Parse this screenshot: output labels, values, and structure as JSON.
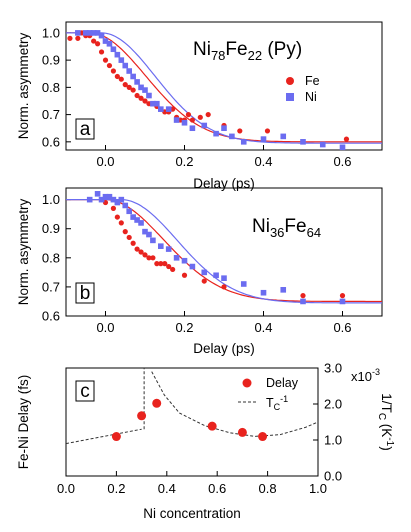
{
  "chart_data": [
    {
      "type": "scatter",
      "panel_label": "a",
      "title": {
        "base": "Ni",
        "sub1": "78",
        "mid": "Fe",
        "sub2": "22",
        "tail": " (Py)"
      },
      "xlabel": "Delay (ps)",
      "ylabel": "Norm. asymmetry",
      "xlim": [
        -0.1,
        0.7
      ],
      "ylim": [
        0.57,
        1.04
      ],
      "xticks": [
        0.0,
        0.2,
        0.4,
        0.6
      ],
      "xtick_labels": [
        "0.0",
        "0.2",
        "0.4",
        "0.6"
      ],
      "yticks": [
        0.6,
        0.7,
        0.8,
        0.9,
        1.0
      ],
      "ytick_labels": [
        "0.6",
        "0.7",
        "0.8",
        "0.9",
        "1.0"
      ],
      "legend": [
        "Fe",
        "Ni"
      ],
      "series": [
        {
          "name": "Fe",
          "marker": "circle",
          "color": "#e8231e",
          "x": [
            -0.09,
            -0.07,
            -0.06,
            -0.05,
            -0.04,
            -0.03,
            -0.02,
            -0.01,
            0.0,
            0.01,
            0.02,
            0.03,
            0.04,
            0.05,
            0.06,
            0.07,
            0.08,
            0.09,
            0.1,
            0.11,
            0.12,
            0.13,
            0.14,
            0.15,
            0.16,
            0.17,
            0.18,
            0.19,
            0.2,
            0.21,
            0.22,
            0.24,
            0.26,
            0.3,
            0.34,
            0.41,
            0.61
          ],
          "y": [
            0.98,
            0.98,
            1.0,
            0.99,
            0.99,
            0.97,
            0.96,
            0.93,
            0.9,
            0.88,
            0.86,
            0.84,
            0.83,
            0.81,
            0.8,
            0.79,
            0.77,
            0.76,
            0.75,
            0.74,
            0.74,
            0.73,
            0.72,
            0.71,
            0.71,
            0.72,
            0.69,
            0.68,
            0.68,
            0.7,
            0.68,
            0.69,
            0.7,
            0.66,
            0.64,
            0.64,
            0.61
          ]
        },
        {
          "name": "Ni",
          "marker": "square",
          "color": "#6b6cf0",
          "x": [
            -0.07,
            -0.05,
            -0.04,
            -0.03,
            -0.02,
            -0.01,
            0.0,
            0.01,
            0.02,
            0.03,
            0.04,
            0.05,
            0.06,
            0.07,
            0.08,
            0.09,
            0.1,
            0.11,
            0.12,
            0.13,
            0.14,
            0.16,
            0.18,
            0.2,
            0.22,
            0.25,
            0.28,
            0.3,
            0.32,
            0.35,
            0.4,
            0.45,
            0.5,
            0.55,
            0.6
          ],
          "y": [
            1.0,
            1.0,
            1.0,
            1.0,
            1.0,
            0.99,
            0.97,
            0.96,
            0.94,
            0.92,
            0.9,
            0.88,
            0.86,
            0.84,
            0.82,
            0.8,
            0.79,
            0.77,
            0.74,
            0.74,
            0.72,
            0.72,
            0.68,
            0.67,
            0.65,
            0.66,
            0.63,
            0.65,
            0.62,
            0.6,
            0.61,
            0.62,
            0.6,
            0.59,
            0.58
          ]
        }
      ],
      "fits": [
        {
          "name": "Fe",
          "color": "#e8231e",
          "baseline": 0.6,
          "amplitude": 0.4,
          "center": 0.075,
          "width": 0.125,
          "onset": -0.04
        },
        {
          "name": "Ni",
          "color": "#6b6cf0",
          "baseline": 0.595,
          "amplitude": 0.405,
          "center": 0.105,
          "width": 0.12,
          "onset": -0.01
        }
      ]
    },
    {
      "type": "scatter",
      "panel_label": "b",
      "title": {
        "base": "Ni",
        "sub1": "36",
        "mid": "Fe",
        "sub2": "64",
        "tail": ""
      },
      "xlabel": "Delay (ps)",
      "ylabel": "Norm. asymmetry",
      "xlim": [
        -0.1,
        0.7
      ],
      "ylim": [
        0.6,
        1.04
      ],
      "xticks": [
        0.0,
        0.2,
        0.4,
        0.6
      ],
      "xtick_labels": [
        "0.0",
        "0.2",
        "0.4",
        "0.6"
      ],
      "yticks": [
        0.6,
        0.7,
        0.8,
        0.9,
        1.0
      ],
      "ytick_labels": [
        "0.6",
        "0.7",
        "0.8",
        "0.9",
        "1.0"
      ],
      "series": [
        {
          "name": "Fe",
          "marker": "circle",
          "color": "#e8231e",
          "x": [
            0.0,
            0.02,
            0.03,
            0.04,
            0.05,
            0.06,
            0.07,
            0.08,
            0.09,
            0.1,
            0.11,
            0.12,
            0.13,
            0.14,
            0.15,
            0.16,
            0.17,
            0.2,
            0.25,
            0.3,
            0.4,
            0.5,
            0.6
          ],
          "y": [
            0.99,
            0.97,
            0.94,
            0.92,
            0.89,
            0.87,
            0.85,
            0.83,
            0.82,
            0.81,
            0.8,
            0.8,
            0.78,
            0.78,
            0.78,
            0.77,
            0.76,
            0.74,
            0.72,
            0.7,
            0.68,
            0.67,
            0.67
          ]
        },
        {
          "name": "Ni",
          "marker": "square",
          "color": "#6b6cf0",
          "x": [
            -0.04,
            -0.02,
            -0.01,
            0.0,
            0.01,
            0.02,
            0.03,
            0.04,
            0.05,
            0.06,
            0.07,
            0.08,
            0.09,
            0.1,
            0.11,
            0.12,
            0.14,
            0.16,
            0.18,
            0.2,
            0.22,
            0.25,
            0.28,
            0.3,
            0.35,
            0.4,
            0.45,
            0.5,
            0.6
          ],
          "y": [
            1.0,
            1.02,
            1.0,
            1.01,
            1.01,
            1.0,
            0.99,
            1.0,
            0.98,
            0.96,
            0.94,
            0.93,
            0.92,
            0.89,
            0.88,
            0.86,
            0.84,
            0.83,
            0.8,
            0.79,
            0.77,
            0.75,
            0.74,
            0.73,
            0.71,
            0.68,
            0.69,
            0.65,
            0.65
          ]
        }
      ],
      "fits": [
        {
          "name": "Fe",
          "color": "#e8231e",
          "baseline": 0.65,
          "amplitude": 0.35,
          "center": 0.11,
          "width": 0.13,
          "onset": 0.0
        },
        {
          "name": "Ni",
          "color": "#6b6cf0",
          "baseline": 0.645,
          "amplitude": 0.355,
          "center": 0.15,
          "width": 0.125,
          "onset": 0.04
        }
      ]
    },
    {
      "type": "scatter",
      "panel_label": "c",
      "xlabel": "Ni concentration",
      "ylabel": "Fe-Ni Delay (fs)",
      "ylabel_right": "1/T",
      "ylabel_right_sub": "C",
      "ylabel_right_unit": " (K",
      "ylabel_right_unit_sup": "-1",
      "ylabel_right_close": ")",
      "xlim": [
        0.0,
        1.0
      ],
      "ylim": [
        0,
        52
      ],
      "ylim_right": [
        0.0,
        3.0
      ],
      "xticks": [
        0.0,
        0.2,
        0.4,
        0.6,
        0.8,
        1.0
      ],
      "xtick_labels": [
        "0.0",
        "0.2",
        "0.4",
        "0.6",
        "0.8",
        "1.0"
      ],
      "yticks_right": [
        0.0,
        1.0,
        2.0,
        3.0
      ],
      "ytick_labels_right": [
        "0.0",
        "1.0",
        "2.0",
        "3.0"
      ],
      "right_multiplier": "x10",
      "right_multiplier_exp": "-3",
      "legend_delay": "Delay",
      "legend_tc_base": "T",
      "legend_tc_sub": "C",
      "legend_tc_sup": "-1",
      "series": [
        {
          "name": "Delay",
          "marker": "circle",
          "color": "#e8231e",
          "x": [
            0.2,
            0.3,
            0.36,
            0.58,
            0.7,
            0.78
          ],
          "y": [
            19,
            29,
            35,
            24,
            21,
            19
          ]
        }
      ],
      "tc_curve": {
        "name": "Tc^-1",
        "style": "dashed",
        "segment_low": {
          "x": [
            0.0,
            0.3
          ],
          "y": [
            0.9,
            1.3
          ]
        },
        "jump": {
          "x": 0.31,
          "y": [
            1.3,
            3.0
          ]
        },
        "segment_high": {
          "x": [
            0.34,
            0.39,
            0.45,
            0.55,
            0.65,
            0.75,
            0.85,
            0.95,
            1.0
          ],
          "y": [
            2.9,
            2.25,
            1.75,
            1.4,
            1.2,
            1.1,
            1.15,
            1.35,
            1.5
          ]
        }
      }
    }
  ]
}
